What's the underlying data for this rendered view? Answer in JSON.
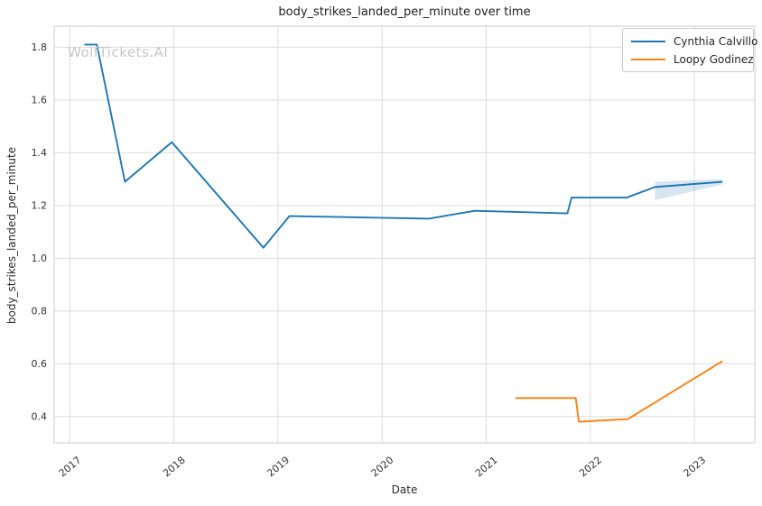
{
  "watermark": "WolfTickets.AI",
  "chart_data": {
    "type": "line",
    "title": "body_strikes_landed_per_minute over time",
    "xlabel": "Date",
    "ylabel": "body_strikes_landed_per_minute",
    "xlim": [
      2016.85,
      2023.58
    ],
    "ylim": [
      0.3,
      1.88
    ],
    "x_ticks": [
      2017,
      2018,
      2019,
      2020,
      2021,
      2022,
      2023
    ],
    "y_ticks": [
      0.4,
      0.6,
      0.8,
      1.0,
      1.2,
      1.4,
      1.6,
      1.8
    ],
    "grid": true,
    "legend_position": "upper right",
    "series": [
      {
        "name": "Cynthia Calvillo",
        "color": "#1f77b4",
        "x": [
          2017.14,
          2017.26,
          2017.53,
          2017.98,
          2018.86,
          2019.11,
          2020.45,
          2020.89,
          2021.78,
          2021.82,
          2022.35,
          2022.62,
          2023.27
        ],
        "y": [
          1.81,
          1.81,
          1.29,
          1.44,
          1.04,
          1.16,
          1.15,
          1.18,
          1.17,
          1.23,
          1.23,
          1.27,
          1.29
        ],
        "band": {
          "x": [
            2022.62,
            2023.27
          ],
          "upper": [
            1.29,
            1.3
          ],
          "lower": [
            1.22,
            1.28
          ],
          "fill": "rgba(31,119,180,0.18)"
        }
      },
      {
        "name": "Loopy Godinez",
        "color": "#ff7f0e",
        "x": [
          2021.28,
          2021.86,
          2021.89,
          2022.36,
          2023.27
        ],
        "y": [
          0.47,
          0.47,
          0.38,
          0.39,
          0.61
        ],
        "band": null
      }
    ]
  },
  "colors": {
    "background": "#ffffff",
    "grid": "#dcdcdc",
    "spine": "#cbcbcb",
    "text": "#262626",
    "watermark": "#c7c7c7"
  }
}
